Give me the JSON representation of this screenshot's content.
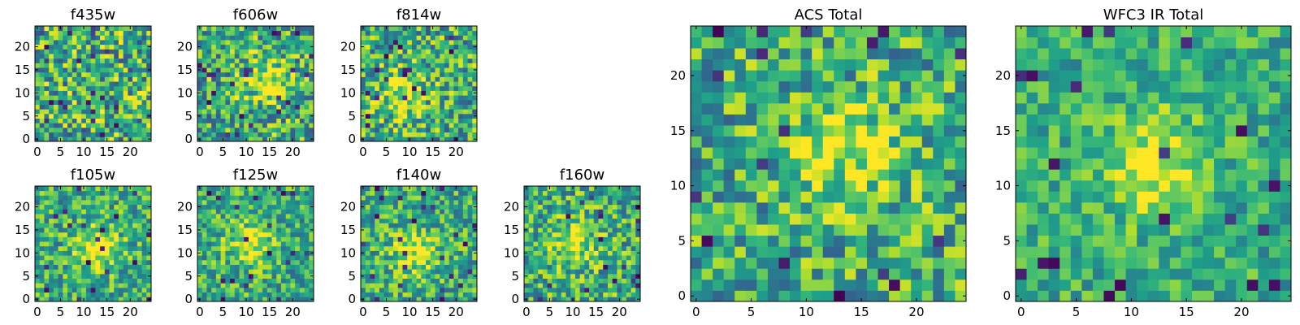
{
  "chart_data": [
    {
      "type": "heatmap",
      "title": "f435w",
      "seed": 11,
      "colormap": "viridis",
      "grid_size": 25,
      "peak": null,
      "noise": 0.55,
      "x_ticks": [
        "0",
        "5",
        "10",
        "15",
        "20"
      ],
      "y_ticks": [
        "0",
        "5",
        "10",
        "15",
        "20"
      ],
      "xlim": [
        0,
        25
      ],
      "ylim": [
        0,
        25
      ]
    },
    {
      "type": "heatmap",
      "title": "f606w",
      "seed": 23,
      "colormap": "viridis",
      "grid_size": 25,
      "peak": [
        14,
        13
      ],
      "noise": 0.5,
      "x_ticks": [
        "0",
        "5",
        "10",
        "15",
        "20"
      ],
      "y_ticks": [
        "0",
        "5",
        "10",
        "15",
        "20"
      ],
      "xlim": [
        0,
        25
      ],
      "ylim": [
        0,
        25
      ]
    },
    {
      "type": "heatmap",
      "title": "f814w",
      "seed": 37,
      "colormap": "viridis",
      "grid_size": 25,
      "peak": [
        8,
        10
      ],
      "noise": 0.5,
      "x_ticks": [
        "0",
        "5",
        "10",
        "15",
        "20"
      ],
      "y_ticks": [
        "0",
        "5",
        "10",
        "15",
        "20"
      ],
      "xlim": [
        0,
        25
      ],
      "ylim": [
        0,
        25
      ]
    },
    {
      "type": "heatmap",
      "title": "f105w",
      "seed": 41,
      "colormap": "viridis",
      "grid_size": 25,
      "peak": [
        13,
        11
      ],
      "noise": 0.4,
      "x_ticks": [
        "0",
        "5",
        "10",
        "15",
        "20"
      ],
      "y_ticks": [
        "0",
        "5",
        "10",
        "15",
        "20"
      ],
      "xlim": [
        0,
        25
      ],
      "ylim": [
        0,
        25
      ]
    },
    {
      "type": "heatmap",
      "title": "f125w",
      "seed": 53,
      "colormap": "viridis",
      "grid_size": 25,
      "peak": [
        11,
        12
      ],
      "noise": 0.4,
      "x_ticks": [
        "0",
        "5",
        "10",
        "15",
        "20"
      ],
      "y_ticks": [
        "0",
        "5",
        "10",
        "15",
        "20"
      ],
      "xlim": [
        0,
        25
      ],
      "ylim": [
        0,
        25
      ]
    },
    {
      "type": "heatmap",
      "title": "f140w",
      "seed": 67,
      "colormap": "viridis",
      "grid_size": 25,
      "peak": [
        11,
        10
      ],
      "noise": 0.4,
      "x_ticks": [
        "0",
        "5",
        "10",
        "15",
        "20"
      ],
      "y_ticks": [
        "0",
        "5",
        "10",
        "15",
        "20"
      ],
      "xlim": [
        0,
        25
      ],
      "ylim": [
        0,
        25
      ]
    },
    {
      "type": "heatmap",
      "title": "f160w",
      "seed": 79,
      "colormap": "viridis",
      "grid_size": 25,
      "peak": [
        10,
        12
      ],
      "noise": 0.45,
      "x_ticks": [
        "0",
        "5",
        "10",
        "15",
        "20"
      ],
      "y_ticks": [
        "0",
        "5",
        "10",
        "15",
        "20"
      ],
      "xlim": [
        0,
        25
      ],
      "ylim": [
        0,
        25
      ]
    },
    {
      "type": "heatmap",
      "title": "ACS Total",
      "seed": 97,
      "colormap": "viridis",
      "grid_size": 25,
      "peak": [
        14,
        13
      ],
      "noise": 0.45,
      "x_ticks": [
        "0",
        "5",
        "10",
        "15",
        "20"
      ],
      "y_ticks": [
        "0",
        "5",
        "10",
        "15",
        "20"
      ],
      "xlim": [
        0,
        25
      ],
      "ylim": [
        0,
        25
      ]
    },
    {
      "type": "heatmap",
      "title": "WFC3 IR Total",
      "seed": 113,
      "colormap": "viridis",
      "grid_size": 25,
      "peak": [
        12,
        12
      ],
      "noise": 0.3,
      "x_ticks": [
        "0",
        "5",
        "10",
        "15",
        "20"
      ],
      "y_ticks": [
        "0",
        "5",
        "10",
        "15",
        "20"
      ],
      "xlim": [
        0,
        25
      ],
      "ylim": [
        0,
        25
      ]
    }
  ]
}
